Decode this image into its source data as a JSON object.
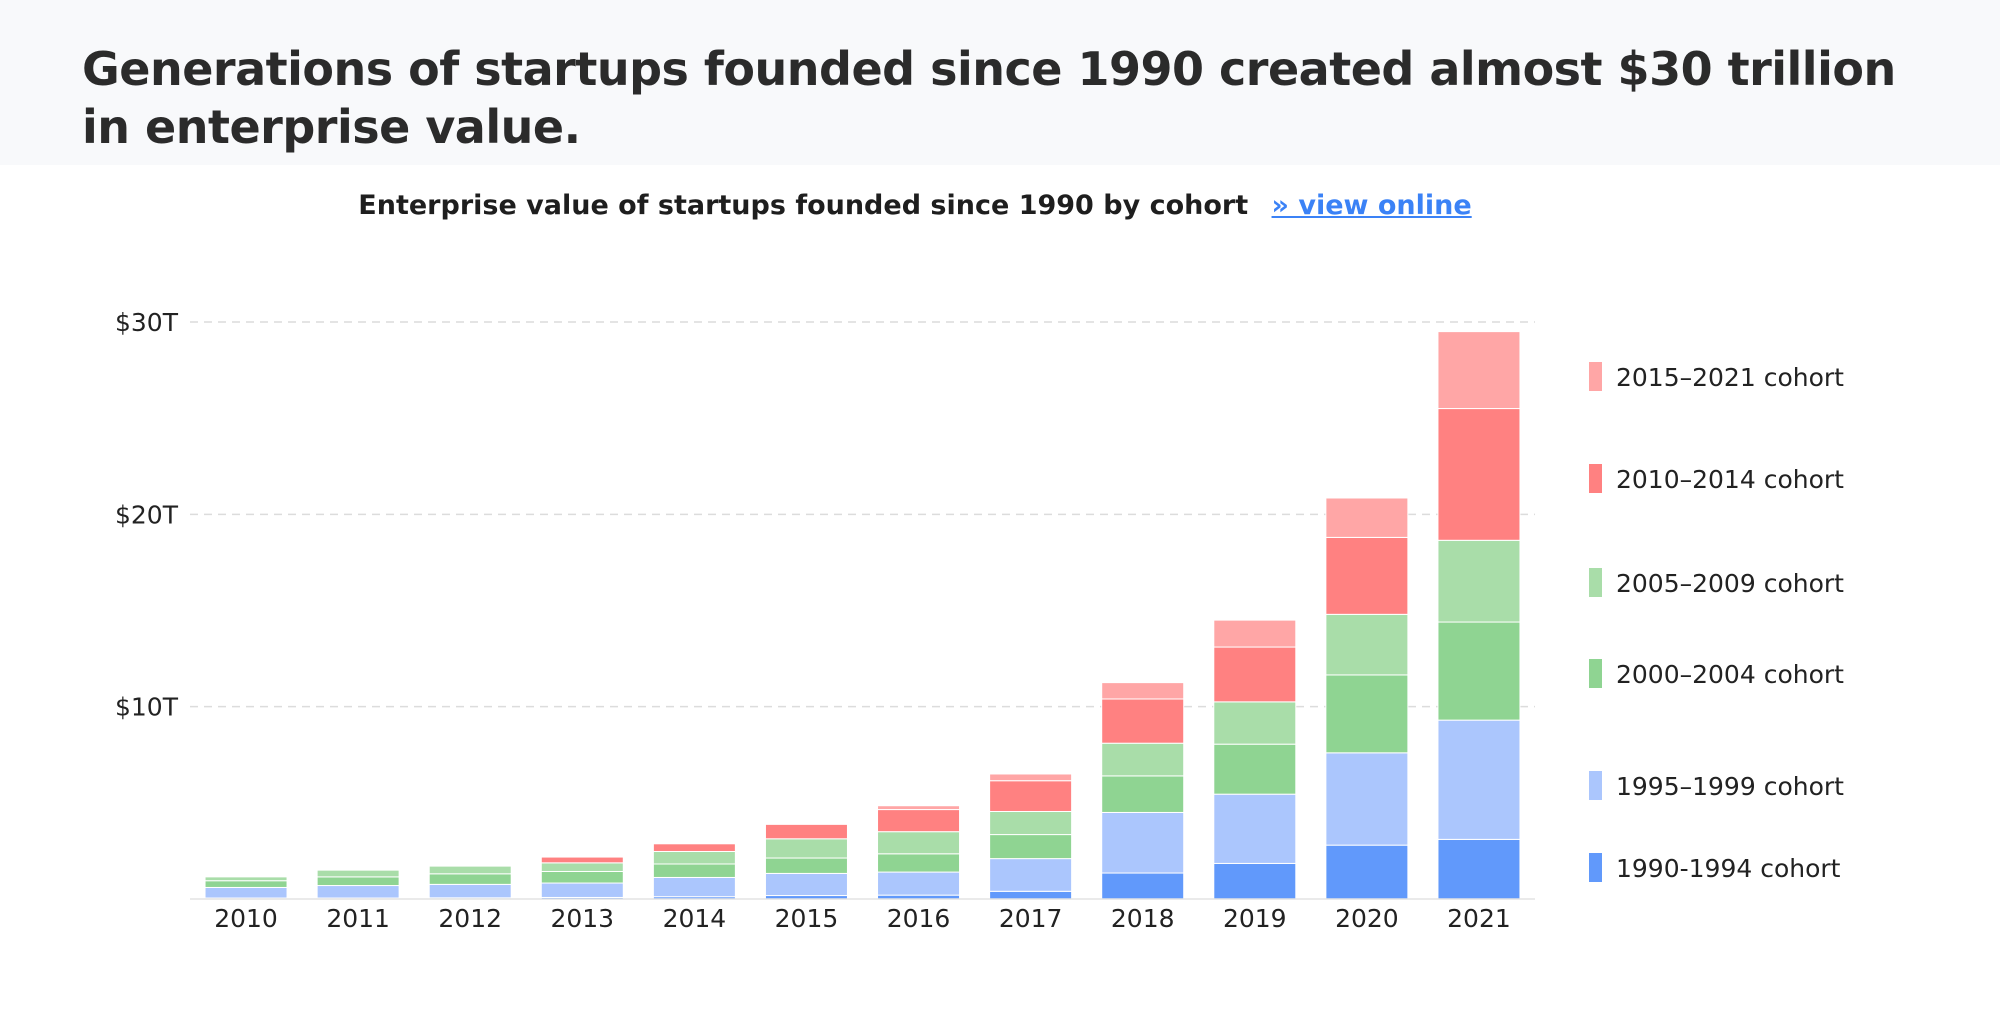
{
  "headline": "Generations of startups founded since 1990 created almost $30 trillion in enterprise value.",
  "chart_header": {
    "title": "Enterprise value of startups founded since 1990 by cohort",
    "link_label": "» view online"
  },
  "chart_data": {
    "type": "bar",
    "stacked": true,
    "title": "Enterprise value of startups founded since 1990 by cohort",
    "xlabel": "",
    "ylabel": "",
    "categories": [
      "2010",
      "2011",
      "2012",
      "2013",
      "2014",
      "2015",
      "2016",
      "2017",
      "2018",
      "2019",
      "2020",
      "2021"
    ],
    "ylim": [
      0,
      30
    ],
    "yticks": [
      10,
      20,
      30
    ],
    "ytick_labels": [
      "$10T",
      "$20T",
      "$30T"
    ],
    "grid": true,
    "legend_position": "right",
    "series": [
      {
        "name": "1990-1994 cohort",
        "color": "#6199fb",
        "values": [
          0.05,
          0.05,
          0.06,
          0.08,
          0.12,
          0.18,
          0.2,
          0.4,
          1.35,
          1.85,
          2.8,
          3.1
        ]
      },
      {
        "name": "1995–1999 cohort",
        "color": "#abc6fd",
        "values": [
          0.55,
          0.65,
          0.7,
          0.75,
          1.0,
          1.15,
          1.2,
          1.7,
          3.15,
          3.6,
          4.8,
          6.2
        ]
      },
      {
        "name": "2000–2004 cohort",
        "color": "#8fd492",
        "values": [
          0.35,
          0.45,
          0.55,
          0.6,
          0.7,
          0.8,
          0.95,
          1.25,
          1.9,
          2.6,
          4.05,
          5.1
        ]
      },
      {
        "name": "2005–2009 cohort",
        "color": "#a9dda9",
        "values": [
          0.2,
          0.35,
          0.4,
          0.45,
          0.65,
          1.0,
          1.15,
          1.2,
          1.7,
          2.2,
          3.15,
          4.25
        ]
      },
      {
        "name": "2010–2014 cohort",
        "color": "#ff8181",
        "values": [
          0.0,
          0.0,
          0.0,
          0.3,
          0.4,
          0.75,
          1.15,
          1.6,
          2.3,
          2.85,
          4.0,
          6.85
        ]
      },
      {
        "name": "2015–2021 cohort",
        "color": "#ffa6a6",
        "values": [
          0.0,
          0.0,
          0.0,
          0.0,
          0.0,
          0.0,
          0.2,
          0.35,
          0.85,
          1.4,
          2.05,
          4.0
        ]
      }
    ],
    "legend_order": [
      "2015–2021 cohort",
      "2010–2014 cohort",
      "2005–2009 cohort",
      "2000–2004 cohort",
      "1995–1999 cohort",
      "1990-1994 cohort"
    ]
  }
}
